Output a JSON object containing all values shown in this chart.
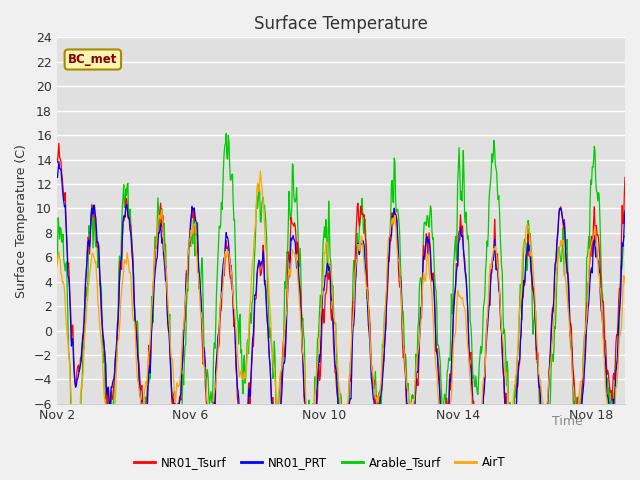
{
  "title": "Surface Temperature",
  "ylabel": "Surface Temperature (C)",
  "xlabel": "Time",
  "annotation": "BC_met",
  "ylim": [
    -6,
    24
  ],
  "yticks": [
    -6,
    -4,
    -2,
    0,
    2,
    4,
    6,
    8,
    10,
    12,
    14,
    16,
    18,
    20,
    22,
    24
  ],
  "xtick_labels": [
    "Nov 2",
    "Nov 6",
    "Nov 10",
    "Nov 14",
    "Nov 18"
  ],
  "xtick_positions": [
    0,
    4,
    8,
    12,
    16
  ],
  "xlim": [
    0,
    17
  ],
  "series_colors": [
    "#ff0000",
    "#0000ff",
    "#00cc00",
    "#ffa500"
  ],
  "series_labels": [
    "NR01_Tsurf",
    "NR01_PRT",
    "Arable_Tsurf",
    "AirT"
  ],
  "fig_bg_color": "#f0f0f0",
  "plot_bg_color": "#e0e0e0",
  "grid_color": "#ffffff",
  "title_fontsize": 12,
  "label_fontsize": 9,
  "tick_fontsize": 9,
  "linewidth": 0.9
}
